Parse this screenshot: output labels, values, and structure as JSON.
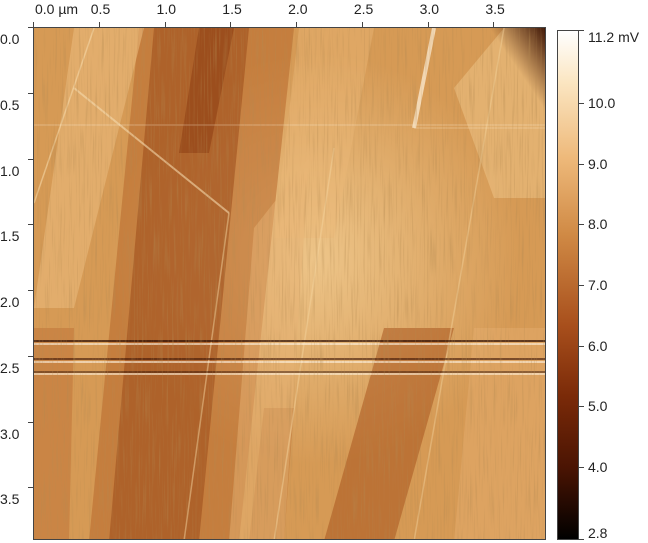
{
  "x_axis": {
    "tick_labels": [
      "0.0 µm",
      "0.5",
      "1.0",
      "1.5",
      "2.0",
      "2.5",
      "3.0",
      "3.5"
    ],
    "tick_values": [
      0.0,
      0.5,
      1.0,
      1.5,
      2.0,
      2.5,
      3.0,
      3.5
    ],
    "range_um": [
      0,
      3.9
    ]
  },
  "y_axis": {
    "tick_labels": [
      "0.0",
      "0.5",
      "1.0",
      "1.5",
      "2.0",
      "2.5",
      "3.0",
      "3.5"
    ],
    "tick_values": [
      0.0,
      0.5,
      1.0,
      1.5,
      2.0,
      2.5,
      3.0,
      3.5
    ],
    "range_um": [
      0,
      3.9
    ]
  },
  "colorbar": {
    "labels": [
      "11.2 mV",
      "10.0",
      "9.0",
      "8.0",
      "7.0",
      "6.0",
      "5.0",
      "4.0",
      "2.8"
    ],
    "values": [
      11.2,
      10.0,
      9.0,
      8.0,
      7.0,
      6.0,
      5.0,
      4.0,
      2.8
    ],
    "range_mv": [
      2.8,
      11.2
    ],
    "colormap": "afmhot"
  },
  "colors": {
    "base_tan": "#d69a55",
    "dark_brown": "#8a3a10",
    "light_band": "#efc486",
    "highlight": "#fff2dc"
  }
}
